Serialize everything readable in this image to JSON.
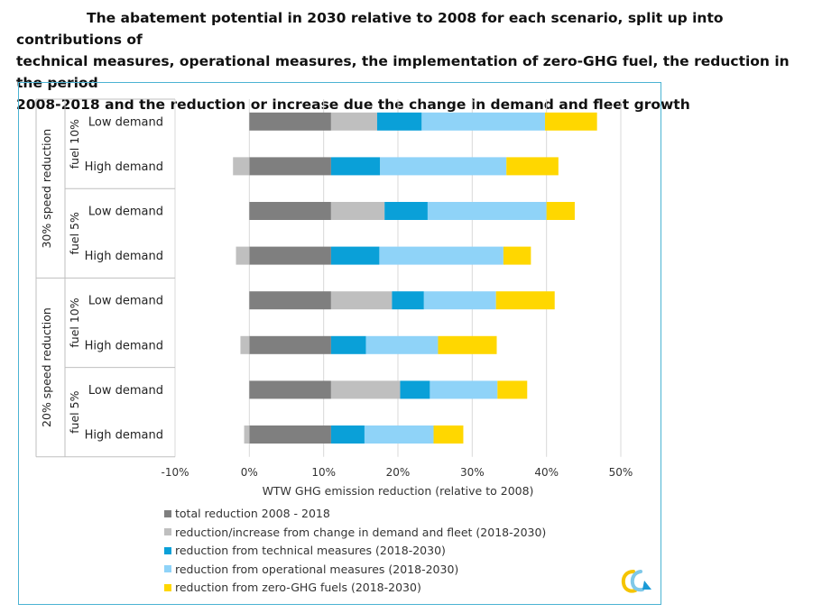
{
  "title": {
    "line1": "The abatement potential in 2030 relative to 2008 for each scenario, split up into contributions of",
    "line2": "technical measures, operational measures, the implementation of zero-GHG fuel, the reduction in the period",
    "line3": "2008-2018 and the reduction or increase due the change in demand and fleet growth"
  },
  "chart_data": {
    "type": "bar",
    "orientation": "horizontal",
    "stacked": true,
    "xlabel": "WTW GHG emission reduction (relative to 2008)",
    "xlim": [
      -0.1,
      0.5
    ],
    "xticks": [
      -0.1,
      0,
      0.1,
      0.2,
      0.3,
      0.4,
      0.5
    ],
    "xtick_labels": [
      "-10%",
      "0%",
      "10%",
      "20%",
      "30%",
      "40%",
      "50%"
    ],
    "grid": "vertical",
    "legend_placement": "bottom",
    "groups": [
      {
        "name": "30% speed reduction",
        "subgroups": [
          {
            "name": "fuel 10%",
            "categories": [
              "Low demand",
              "High demand"
            ]
          },
          {
            "name": "fuel 5%",
            "categories": [
              "Low demand",
              "High demand"
            ]
          }
        ]
      },
      {
        "name": "20% speed reduction",
        "subgroups": [
          {
            "name": "fuel 10%",
            "categories": [
              "Low demand",
              "High demand"
            ]
          },
          {
            "name": "fuel 5%",
            "categories": [
              "Low demand",
              "High demand"
            ]
          }
        ]
      }
    ],
    "categories": [
      "Low demand",
      "High demand",
      "Low demand",
      "High demand",
      "Low demand",
      "High demand",
      "Low demand",
      "High demand"
    ],
    "series": [
      {
        "name": "total reduction 2008 - 2018",
        "color": "#7f7f7f",
        "values": [
          0.11,
          0.11,
          0.11,
          0.11,
          0.11,
          0.11,
          0.11,
          0.11
        ]
      },
      {
        "name": "reduction/increase from change in demand and fleet (2018-2030)",
        "color": "#bfbfbf",
        "values": [
          0.062,
          -0.022,
          0.072,
          -0.018,
          0.082,
          -0.012,
          0.093,
          -0.007
        ]
      },
      {
        "name": "reduction from technical measures (2018-2030)",
        "color": "#0aa0d8",
        "values": [
          0.06,
          0.066,
          0.058,
          0.065,
          0.043,
          0.047,
          0.04,
          0.045
        ]
      },
      {
        "name": "reduction from operational measures (2018-2030)",
        "color": "#8fd3f8",
        "values": [
          0.166,
          0.17,
          0.16,
          0.167,
          0.097,
          0.097,
          0.091,
          0.093
        ]
      },
      {
        "name": "reduction from zero-GHG fuels (2018-2030)",
        "color": "#ffd700",
        "values": [
          0.07,
          0.07,
          0.038,
          0.037,
          0.079,
          0.079,
          0.04,
          0.04
        ]
      }
    ]
  }
}
